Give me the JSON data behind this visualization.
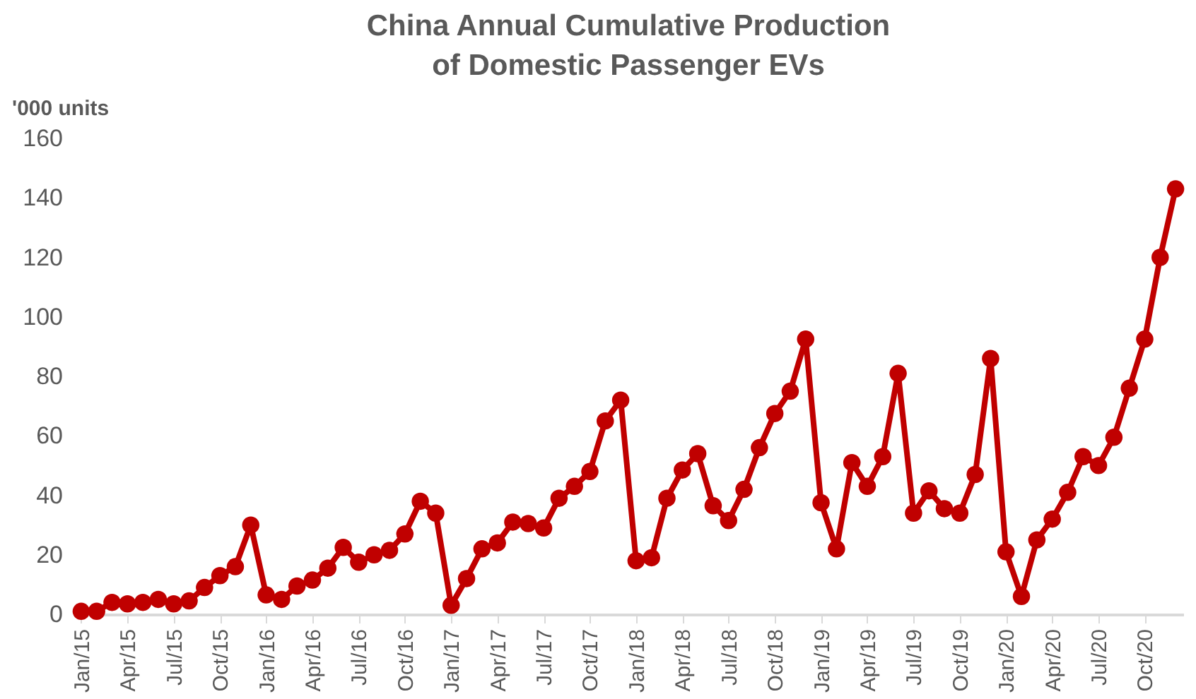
{
  "chart_data": {
    "type": "line",
    "title": "China Annual Cumulative Production of Domestic Passenger EVs",
    "ylabel": "'000 units",
    "categories": [
      "Jan/15",
      null,
      null,
      "Apr/15",
      null,
      null,
      "Jul/15",
      null,
      null,
      "Oct/15",
      null,
      null,
      "Jan/16",
      null,
      null,
      "Apr/16",
      null,
      null,
      "Jul/16",
      null,
      null,
      "Oct/16",
      null,
      null,
      "Jan/17",
      null,
      null,
      "Apr/17",
      null,
      null,
      "Jul/17",
      null,
      null,
      "Oct/17",
      null,
      null,
      "Jan/18",
      null,
      null,
      "Apr/18",
      null,
      null,
      "Jul/18",
      null,
      null,
      "Oct/18",
      null,
      null,
      "Jan/19",
      null,
      null,
      "Apr/19",
      null,
      null,
      "Jul/19",
      null,
      null,
      "Oct/19",
      null,
      null,
      "Jan/20",
      null,
      null,
      "Apr/20",
      null,
      null,
      "Jul/20",
      null,
      null,
      "Oct/20",
      null,
      null
    ],
    "series": [
      {
        "color": "#c00000",
        "values": [
          1,
          1,
          4,
          3.5,
          4,
          5,
          3.5,
          4.5,
          9,
          13,
          16,
          30,
          6.5,
          5,
          9.5,
          11.5,
          15.5,
          22.5,
          17.5,
          20,
          21.5,
          27,
          38,
          34,
          3,
          12,
          22,
          24,
          31,
          30.5,
          29,
          39,
          43,
          48,
          65,
          72,
          18,
          19,
          39,
          48.5,
          54,
          36.5,
          31.5,
          42,
          56,
          67.5,
          75,
          92.5,
          37.5,
          22,
          51,
          43,
          53,
          81,
          34,
          41.5,
          35.5,
          34,
          47,
          86,
          21,
          6,
          25,
          32,
          41,
          53,
          50,
          59.5,
          76,
          92.5,
          120,
          143
        ]
      }
    ],
    "ylim": [
      0,
      160
    ],
    "yticks": [
      0,
      20,
      40,
      60,
      80,
      100,
      120,
      140,
      160
    ],
    "grid": false,
    "legend": false,
    "marker": "circle",
    "line_style": "solid"
  }
}
